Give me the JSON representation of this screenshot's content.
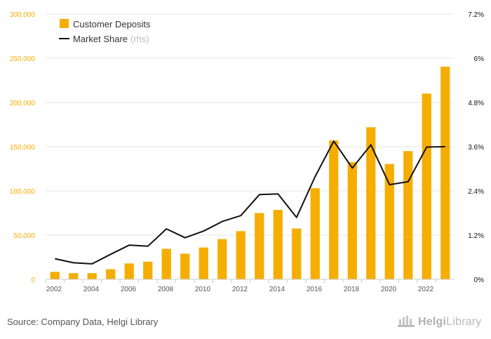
{
  "chart_data": {
    "type": "bar",
    "categories": [
      "2002",
      "2003",
      "2004",
      "2005",
      "2006",
      "2007",
      "2008",
      "2009",
      "2010",
      "2011",
      "2012",
      "2013",
      "2014",
      "2015",
      "2016",
      "2017",
      "2018",
      "2019",
      "2020",
      "2021",
      "2022",
      "2023"
    ],
    "x_tick_labels": [
      "2002",
      "2004",
      "2006",
      "2008",
      "2010",
      "2012",
      "2014",
      "2016",
      "2018",
      "2020",
      "2022"
    ],
    "series": [
      {
        "name": "Customer Deposits",
        "type": "bar",
        "axis": "left",
        "color": "#f5ae00",
        "values": [
          8500,
          7000,
          7000,
          11500,
          18000,
          20000,
          34500,
          29000,
          36000,
          45500,
          54500,
          75000,
          78500,
          57500,
          103000,
          157000,
          132500,
          172000,
          130500,
          145000,
          210000,
          240500
        ]
      },
      {
        "name": "Market Share",
        "name_suffix": "(rhs)",
        "type": "line",
        "axis": "right",
        "color": "#111111",
        "values": [
          0.56,
          0.45,
          0.42,
          0.68,
          0.93,
          0.9,
          1.37,
          1.13,
          1.31,
          1.57,
          1.73,
          2.3,
          2.32,
          1.68,
          2.79,
          3.75,
          3.02,
          3.65,
          2.57,
          2.65,
          3.59,
          3.6
        ]
      }
    ],
    "y_left": {
      "ylim": [
        0,
        300000
      ],
      "ticks": [
        0,
        50000,
        100000,
        150000,
        200000,
        250000,
        300000
      ],
      "tick_labels": [
        "0",
        "50,000",
        "100,000",
        "150,000",
        "200,000",
        "250,000",
        "300,000"
      ],
      "label_color": "#f5ae00"
    },
    "y_right": {
      "ylim": [
        0,
        7.2
      ],
      "ticks": [
        0,
        1.2,
        2.4,
        3.6,
        4.8,
        6.0,
        7.2
      ],
      "tick_labels": [
        "0%",
        "1.2%",
        "2.4%",
        "3.6%",
        "4.8%",
        "6%",
        "7.2%"
      ],
      "label_color": "#111111"
    },
    "grid": true,
    "legend_position": "top-left"
  },
  "footer": {
    "source": "Source: Company Data, Helgi Library",
    "logo_part1": "Helgi",
    "logo_part2": "Library"
  },
  "colors": {
    "bar": "#f5ae00",
    "line": "#111111",
    "grid": "#e6e6e6",
    "axis": "#cccccc"
  }
}
